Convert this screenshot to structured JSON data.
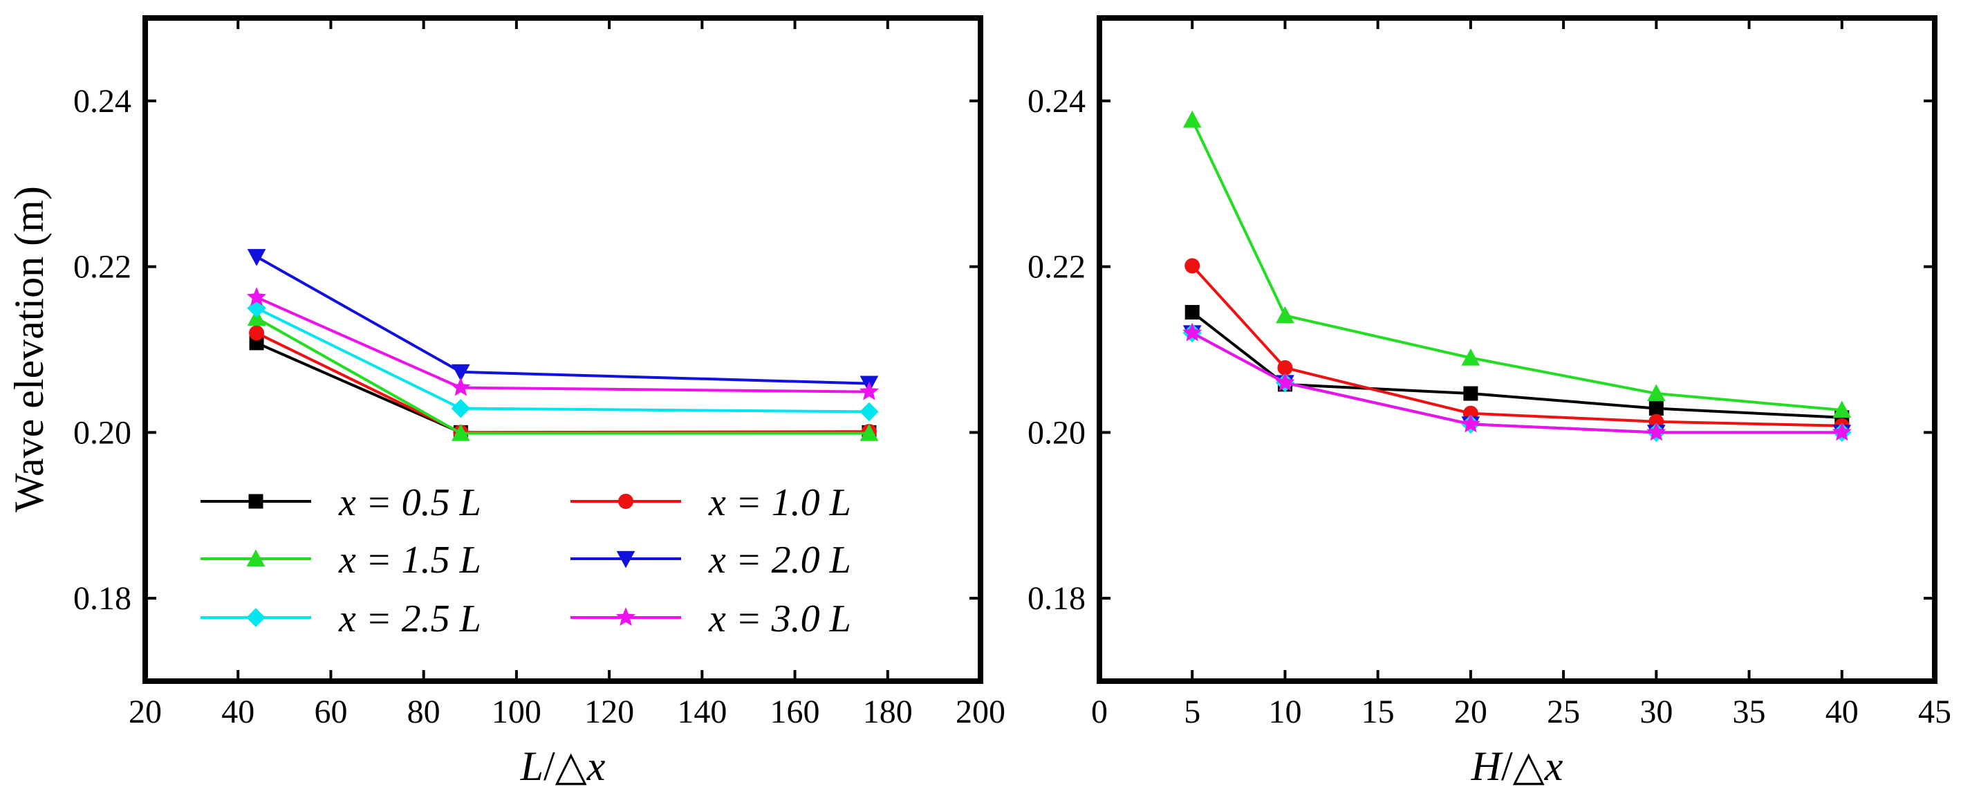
{
  "figure": {
    "shared_ylabel": "Wave elevation (m)"
  },
  "chart_data": [
    {
      "type": "line",
      "panel": "left",
      "title": "",
      "xlabel": "L/△x",
      "xlabel_parts": {
        "var": "L",
        "rest": "/△x"
      },
      "ylabel": "Wave elevation (m)",
      "xlim": [
        20,
        200
      ],
      "ylim": [
        0.17,
        0.25
      ],
      "xticks": [
        20,
        40,
        60,
        80,
        100,
        120,
        140,
        160,
        180,
        200
      ],
      "xtick_labels": [
        "20",
        "40",
        "60",
        "80",
        "100",
        "120",
        "140",
        "160",
        "180",
        "200"
      ],
      "yticks": [
        0.18,
        0.2,
        0.22,
        0.24
      ],
      "ytick_labels": [
        "0.18",
        "0.20",
        "0.22",
        "0.24"
      ],
      "grid": false,
      "legend": "lower-left",
      "x": [
        44,
        88,
        176
      ],
      "series": [
        {
          "name": "x = 0.5 L",
          "color": "#000000",
          "marker": "square",
          "values": [
            0.2108,
            0.2,
            0.2
          ]
        },
        {
          "name": "x = 1.0 L",
          "color": "#ee1111",
          "marker": "circle",
          "values": [
            0.212,
            0.2,
            0.2001
          ]
        },
        {
          "name": "x = 1.5 L",
          "color": "#22dd22",
          "marker": "triangle-up",
          "values": [
            0.2138,
            0.1999,
            0.1999
          ]
        },
        {
          "name": "x = 2.0 L",
          "color": "#1111dd",
          "marker": "triangle-down",
          "values": [
            0.2212,
            0.2073,
            0.2059
          ]
        },
        {
          "name": "x = 2.5 L",
          "color": "#00e5ee",
          "marker": "diamond",
          "values": [
            0.215,
            0.2029,
            0.2025
          ]
        },
        {
          "name": "x = 3.0 L",
          "color": "#ee11ee",
          "marker": "star",
          "values": [
            0.2163,
            0.2054,
            0.2049
          ]
        }
      ]
    },
    {
      "type": "line",
      "panel": "right",
      "title": "",
      "xlabel": "H/△x",
      "xlabel_parts": {
        "var": "H",
        "rest": "/△x"
      },
      "ylabel": "",
      "xlim": [
        0,
        45
      ],
      "ylim": [
        0.17,
        0.25
      ],
      "xticks": [
        0,
        5,
        10,
        15,
        20,
        25,
        30,
        35,
        40,
        45
      ],
      "xtick_labels": [
        "0",
        "5",
        "10",
        "15",
        "20",
        "25",
        "30",
        "35",
        "40",
        "45"
      ],
      "yticks": [
        0.18,
        0.2,
        0.22,
        0.24
      ],
      "ytick_labels": [
        "0.18",
        "0.20",
        "0.22",
        "0.24"
      ],
      "grid": false,
      "legend": "none",
      "x": [
        5,
        10,
        20,
        30,
        40
      ],
      "series": [
        {
          "name": "x = 0.5 L",
          "color": "#000000",
          "marker": "square",
          "values": [
            0.2145,
            0.2058,
            0.2047,
            0.2029,
            0.2018
          ]
        },
        {
          "name": "x = 1.0 L",
          "color": "#ee1111",
          "marker": "circle",
          "values": [
            0.2201,
            0.2078,
            0.2023,
            0.2013,
            0.2008
          ]
        },
        {
          "name": "x = 1.5 L",
          "color": "#22dd22",
          "marker": "triangle-up",
          "values": [
            0.2377,
            0.2141,
            0.209,
            0.2047,
            0.2027
          ]
        },
        {
          "name": "x = 2.0 L",
          "color": "#1111dd",
          "marker": "triangle-down",
          "values": [
            0.212,
            0.206,
            0.201,
            0.2,
            0.2
          ]
        },
        {
          "name": "x = 2.5 L",
          "color": "#00e5ee",
          "marker": "diamond",
          "values": [
            0.212,
            0.206,
            0.201,
            0.2,
            0.2
          ]
        },
        {
          "name": "x = 3.0 L",
          "color": "#ee11ee",
          "marker": "star",
          "values": [
            0.212,
            0.206,
            0.201,
            0.2,
            0.2
          ]
        }
      ]
    }
  ]
}
